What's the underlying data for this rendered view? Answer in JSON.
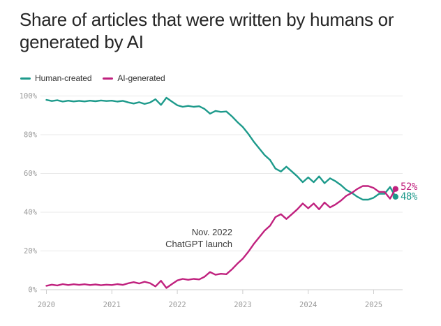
{
  "title": {
    "line1": "Share of articles that were written by humans or",
    "line2": "generated by AI"
  },
  "legend": [
    {
      "label": "Human-created",
      "color": "#1d9a8b"
    },
    {
      "label": "AI-generated",
      "color": "#c0217e"
    }
  ],
  "annotation": {
    "line1": "Nov. 2022",
    "line2": "ChatGPT launch"
  },
  "end_labels": [
    {
      "text": "52%",
      "color": "#c0217e"
    },
    {
      "text": "48%",
      "color": "#1d9a8b"
    }
  ],
  "colors": {
    "human": "#1d9a8b",
    "ai": "#c0217e",
    "grid": "#e9e9e9",
    "axis": "#cdcdcd",
    "tick_label": "#9b9b9b"
  },
  "chart_data": {
    "type": "line",
    "title": "Share of articles that were written by humans or generated by AI",
    "x_start": "2020-01",
    "x_end": "2025-05",
    "frequency": "monthly",
    "x_tick_labels": [
      "2020",
      "2021",
      "2022",
      "2023",
      "2024",
      "2025"
    ],
    "y_ticks": [
      0,
      20,
      40,
      60,
      80,
      100
    ],
    "y_tick_labels": [
      "0%",
      "20%",
      "40%",
      "60%",
      "80%",
      "100%"
    ],
    "ylim": [
      0,
      100
    ],
    "grid": true,
    "legend_position": "top-left",
    "annotation": {
      "text": "Nov. 2022 ChatGPT launch",
      "x": "2022-11"
    },
    "series": [
      {
        "name": "Human-created",
        "color": "#1d9a8b",
        "end_label": "48%",
        "values": [
          98.0,
          97.4,
          97.8,
          97.1,
          97.6,
          97.2,
          97.5,
          97.2,
          97.6,
          97.3,
          97.7,
          97.4,
          97.6,
          97.1,
          97.5,
          96.7,
          96.1,
          96.8,
          95.9,
          96.6,
          98.3,
          95.4,
          99.1,
          97.1,
          95.2,
          94.4,
          94.9,
          94.4,
          94.7,
          93.3,
          90.9,
          92.3,
          91.8,
          92.0,
          89.5,
          86.6,
          84.0,
          80.5,
          76.5,
          73.0,
          69.5,
          67.0,
          62.5,
          61.0,
          63.5,
          61.0,
          58.5,
          55.5,
          58.0,
          55.5,
          58.5,
          55.0,
          57.5,
          56.0,
          54.0,
          51.5,
          50.0,
          48.0,
          46.5,
          46.5,
          47.5,
          49.5,
          49.5,
          53.0,
          48.0
        ]
      },
      {
        "name": "AI-generated",
        "color": "#c0217e",
        "end_label": "52%",
        "values": [
          2.0,
          2.6,
          2.2,
          2.9,
          2.4,
          2.8,
          2.5,
          2.8,
          2.4,
          2.7,
          2.3,
          2.6,
          2.4,
          2.9,
          2.5,
          3.3,
          3.9,
          3.2,
          4.1,
          3.4,
          1.7,
          4.6,
          0.9,
          2.9,
          4.8,
          5.6,
          5.1,
          5.6,
          5.3,
          6.7,
          9.1,
          7.7,
          8.2,
          8.0,
          10.5,
          13.4,
          16.0,
          19.5,
          23.5,
          27.0,
          30.5,
          33.0,
          37.5,
          39.0,
          36.5,
          39.0,
          41.5,
          44.5,
          42.0,
          44.5,
          41.5,
          45.0,
          42.5,
          44.0,
          46.0,
          48.5,
          50.0,
          52.0,
          53.5,
          53.5,
          52.5,
          50.5,
          50.5,
          47.0,
          52.0
        ]
      }
    ]
  }
}
